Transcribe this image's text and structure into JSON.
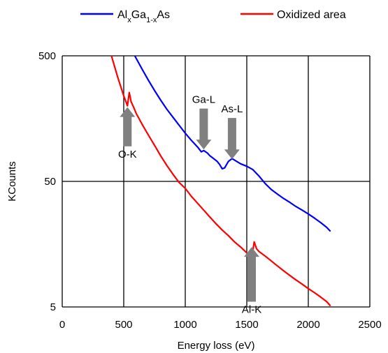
{
  "chart_data": {
    "type": "line",
    "xlabel": "Energy loss (eV)",
    "ylabel": "KCounts",
    "xlim": [
      0,
      2500
    ],
    "ylim": [
      5,
      500
    ],
    "yscale": "log",
    "x_ticks": [
      "0",
      "500",
      "1000",
      "1500",
      "2000",
      "2500"
    ],
    "y_ticks": [
      "5",
      "50",
      "500"
    ],
    "grid": true,
    "legend_position": "top",
    "series": [
      {
        "name_main": "Al",
        "name_sub1": "x",
        "name_mid": "Ga",
        "name_sub2": "1-x",
        "name_end": "As",
        "color": "#0000ff",
        "x": [
          590,
          650,
          700,
          750,
          800,
          850,
          900,
          950,
          1000,
          1050,
          1100,
          1130,
          1150,
          1180,
          1200,
          1230,
          1260,
          1280,
          1300,
          1320,
          1350,
          1380,
          1400,
          1450,
          1500,
          1550,
          1600,
          1650,
          1700,
          1750,
          1800,
          1850,
          1900,
          1950,
          2000,
          2050,
          2100,
          2150,
          2180
        ],
        "y": [
          500,
          390,
          320,
          265,
          222,
          188,
          162,
          140,
          121,
          106,
          94,
          86,
          88,
          84,
          80,
          76,
          72,
          68,
          63,
          64,
          72,
          76,
          74,
          69,
          66,
          62,
          55,
          48,
          43,
          39.5,
          36.5,
          34,
          31.5,
          29.5,
          27.5,
          25.5,
          23.5,
          21.5,
          20
        ]
      },
      {
        "name": "Oxidized area",
        "color": "#ff0000",
        "x": [
          400,
          450,
          500,
          530,
          545,
          560,
          580,
          600,
          650,
          700,
          750,
          800,
          850,
          900,
          950,
          1000,
          1050,
          1100,
          1150,
          1200,
          1250,
          1300,
          1350,
          1400,
          1450,
          1500,
          1540,
          1560,
          1580,
          1600,
          1650,
          1700,
          1750,
          1800,
          1850,
          1900,
          1950,
          2000,
          2050,
          2100,
          2150,
          2180
        ],
        "y": [
          500,
          340,
          240,
          200,
          255,
          215,
          195,
          175,
          142,
          117,
          97,
          80,
          67,
          57,
          49,
          44,
          38,
          33.5,
          29.5,
          26,
          23,
          20.5,
          18.5,
          16.5,
          15,
          13.5,
          12.2,
          16.5,
          14.5,
          13.8,
          12.7,
          11.6,
          10.6,
          9.7,
          8.9,
          8.2,
          7.6,
          7.0,
          6.5,
          6.0,
          5.5,
          5.1
        ]
      }
    ],
    "annotations": [
      {
        "text": "O-K",
        "x": 530,
        "arrow_tip": 195,
        "arrow_tail": 95,
        "direction": "up"
      },
      {
        "text": "Ga-L",
        "x": 1150,
        "arrow_tip": 90,
        "arrow_tail": 190,
        "direction": "down"
      },
      {
        "text": "As-L",
        "x": 1380,
        "arrow_tip": 75,
        "arrow_tail": 160,
        "direction": "down"
      },
      {
        "text": "Al-K",
        "x": 1540,
        "arrow_tip": 15,
        "arrow_tail": 5.5,
        "direction": "up"
      }
    ]
  }
}
